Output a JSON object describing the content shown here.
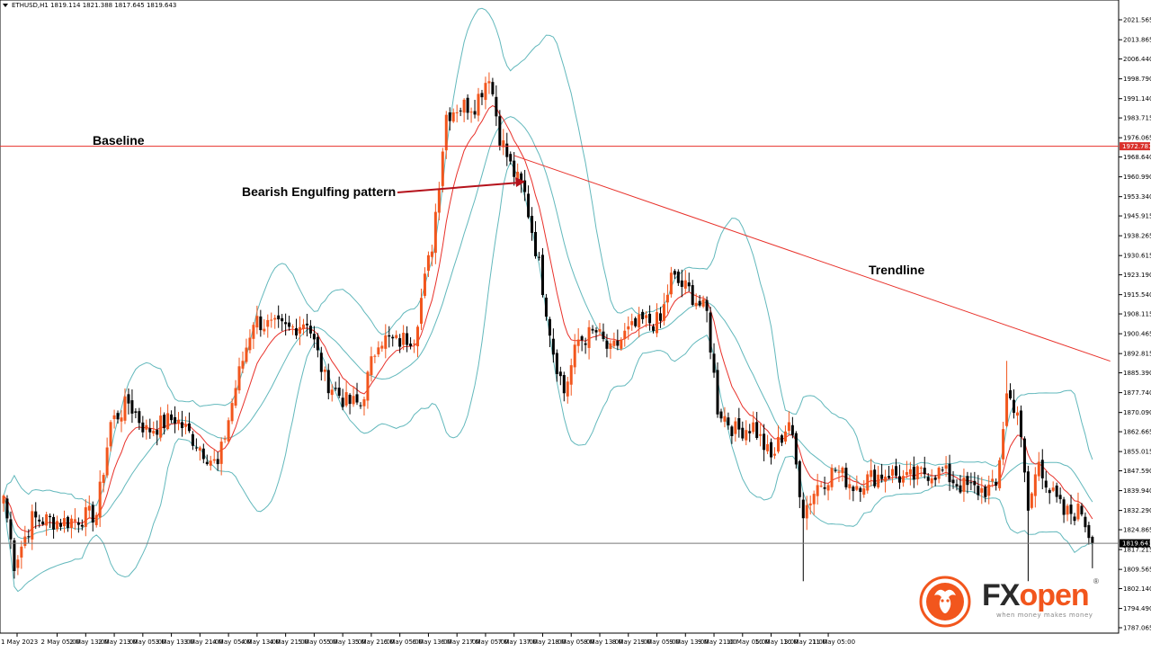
{
  "symbol_info": "ETHUSD,H1  1819.114 1821.388 1817.645 1819.643",
  "annotations": {
    "baseline": "Baseline",
    "bearish": "Bearish Engulfing pattern",
    "trendline": "Trendline"
  },
  "logo": {
    "fx": "FX",
    "open": "open",
    "tagline": "when money makes money",
    "reg": "®"
  },
  "colors": {
    "bull": "#f2561d",
    "bear": "#000000",
    "ma": "#e8312a",
    "bands": "#62b8bc",
    "baseline": "#e8312a",
    "trendline": "#e8312a",
    "arrow": "#b5121b",
    "price_label_bg": "#d9302a",
    "current_label_bg": "#000000"
  },
  "chart_data": {
    "type": "candlestick",
    "title": "ETHUSD,H1",
    "ylim": [
      1787.06,
      2027.6
    ],
    "y_ticks": [
      "2021.565",
      "2013.865",
      "2006.440",
      "1998.790",
      "1991.140",
      "1983.715",
      "1976.065",
      "1968.640",
      "1960.990",
      "1953.340",
      "1945.915",
      "1938.265",
      "1930.615",
      "1923.190",
      "1915.540",
      "1908.115",
      "1900.465",
      "1892.815",
      "1885.390",
      "1877.740",
      "1870.090",
      "1862.665",
      "1855.015",
      "1847.590",
      "1839.940",
      "1832.290",
      "1824.865",
      "1817.215",
      "1809.565",
      "1802.140",
      "1794.490",
      "1787.065"
    ],
    "x_ticks": [
      "1 May 2023",
      "2 May 05:00",
      "2 May 13:00",
      "2 May 21:00",
      "3 May 05:00",
      "3 May 13:00",
      "3 May 21:00",
      "4 May 05:00",
      "4 May 13:00",
      "4 May 21:00",
      "5 May 05:00",
      "5 May 13:00",
      "5 May 21:00",
      "6 May 05:00",
      "6 May 13:00",
      "6 May 21:00",
      "7 May 05:00",
      "7 May 13:00",
      "7 May 21:00",
      "8 May 05:00",
      "8 May 13:00",
      "8 May 21:00",
      "9 May 05:00",
      "9 May 13:00",
      "9 May 21:00",
      "10 May 05:00",
      "10 May 13:00",
      "10 May 21:00",
      "11 May 05:00"
    ],
    "baseline_value": 1972.781,
    "baseline_label": "1972.781",
    "current_price": 1819.643,
    "current_label": "1819.643",
    "trendline": {
      "from": {
        "bar": 143,
        "value": 1969.2
      },
      "to": {
        "bar": 310,
        "value": 1889.9
      }
    },
    "anchor_points": [
      {
        "bar": 0,
        "value": 1838.0
      },
      {
        "bar": 3,
        "value": 1812.0
      },
      {
        "bar": 8,
        "value": 1829.0
      },
      {
        "bar": 17,
        "value": 1828.0
      },
      {
        "bar": 26,
        "value": 1831.0
      },
      {
        "bar": 30,
        "value": 1866.0
      },
      {
        "bar": 35,
        "value": 1874.0
      },
      {
        "bar": 40,
        "value": 1863.0
      },
      {
        "bar": 48,
        "value": 1868.0
      },
      {
        "bar": 55,
        "value": 1857.0
      },
      {
        "bar": 60,
        "value": 1849.0
      },
      {
        "bar": 65,
        "value": 1880.0
      },
      {
        "bar": 70,
        "value": 1906.0
      },
      {
        "bar": 75,
        "value": 1903.0
      },
      {
        "bar": 80,
        "value": 1902.0
      },
      {
        "bar": 85,
        "value": 1906.0
      },
      {
        "bar": 90,
        "value": 1883.0
      },
      {
        "bar": 96,
        "value": 1874.0
      },
      {
        "bar": 100,
        "value": 1873.0
      },
      {
        "bar": 105,
        "value": 1899.0
      },
      {
        "bar": 110,
        "value": 1897.0
      },
      {
        "bar": 115,
        "value": 1900.0
      },
      {
        "bar": 120,
        "value": 1935.0
      },
      {
        "bar": 124,
        "value": 1985.0
      },
      {
        "bar": 127,
        "value": 1988.0
      },
      {
        "bar": 132,
        "value": 1989.0
      },
      {
        "bar": 136,
        "value": 2001.0
      },
      {
        "bar": 139,
        "value": 1977.0
      },
      {
        "bar": 142,
        "value": 1965.0
      },
      {
        "bar": 146,
        "value": 1954.0
      },
      {
        "bar": 150,
        "value": 1927.0
      },
      {
        "bar": 154,
        "value": 1894.0
      },
      {
        "bar": 157,
        "value": 1878.0
      },
      {
        "bar": 161,
        "value": 1898.0
      },
      {
        "bar": 166,
        "value": 1901.0
      },
      {
        "bar": 170,
        "value": 1893.0
      },
      {
        "bar": 174,
        "value": 1900.0
      },
      {
        "bar": 179,
        "value": 1905.0
      },
      {
        "bar": 184,
        "value": 1905.0
      },
      {
        "bar": 187,
        "value": 1922.0
      },
      {
        "bar": 192,
        "value": 1917.0
      },
      {
        "bar": 197,
        "value": 1908.0
      },
      {
        "bar": 200,
        "value": 1872.0
      },
      {
        "bar": 205,
        "value": 1863.0
      },
      {
        "bar": 210,
        "value": 1865.0
      },
      {
        "bar": 215,
        "value": 1852.0
      },
      {
        "bar": 220,
        "value": 1867.0
      },
      {
        "bar": 224,
        "value": 1832.0
      },
      {
        "bar": 228,
        "value": 1842.0
      },
      {
        "bar": 233,
        "value": 1848.0
      },
      {
        "bar": 238,
        "value": 1842.0
      },
      {
        "bar": 243,
        "value": 1845.0
      },
      {
        "bar": 248,
        "value": 1847.0
      },
      {
        "bar": 253,
        "value": 1844.0
      },
      {
        "bar": 258,
        "value": 1847.0
      },
      {
        "bar": 263,
        "value": 1847.0
      },
      {
        "bar": 268,
        "value": 1842.0
      },
      {
        "bar": 273,
        "value": 1840.0
      },
      {
        "bar": 278,
        "value": 1841.0
      },
      {
        "bar": 281,
        "value": 1877.0
      },
      {
        "bar": 284,
        "value": 1871.0
      },
      {
        "bar": 287,
        "value": 1832.0
      },
      {
        "bar": 290,
        "value": 1852.0
      },
      {
        "bar": 293,
        "value": 1840.0
      },
      {
        "bar": 297,
        "value": 1831.0
      },
      {
        "bar": 302,
        "value": 1832.0
      },
      {
        "bar": 305,
        "value": 1819.6
      }
    ],
    "indicators": [
      "Bollinger Bands (20)",
      "Moving Average"
    ]
  }
}
